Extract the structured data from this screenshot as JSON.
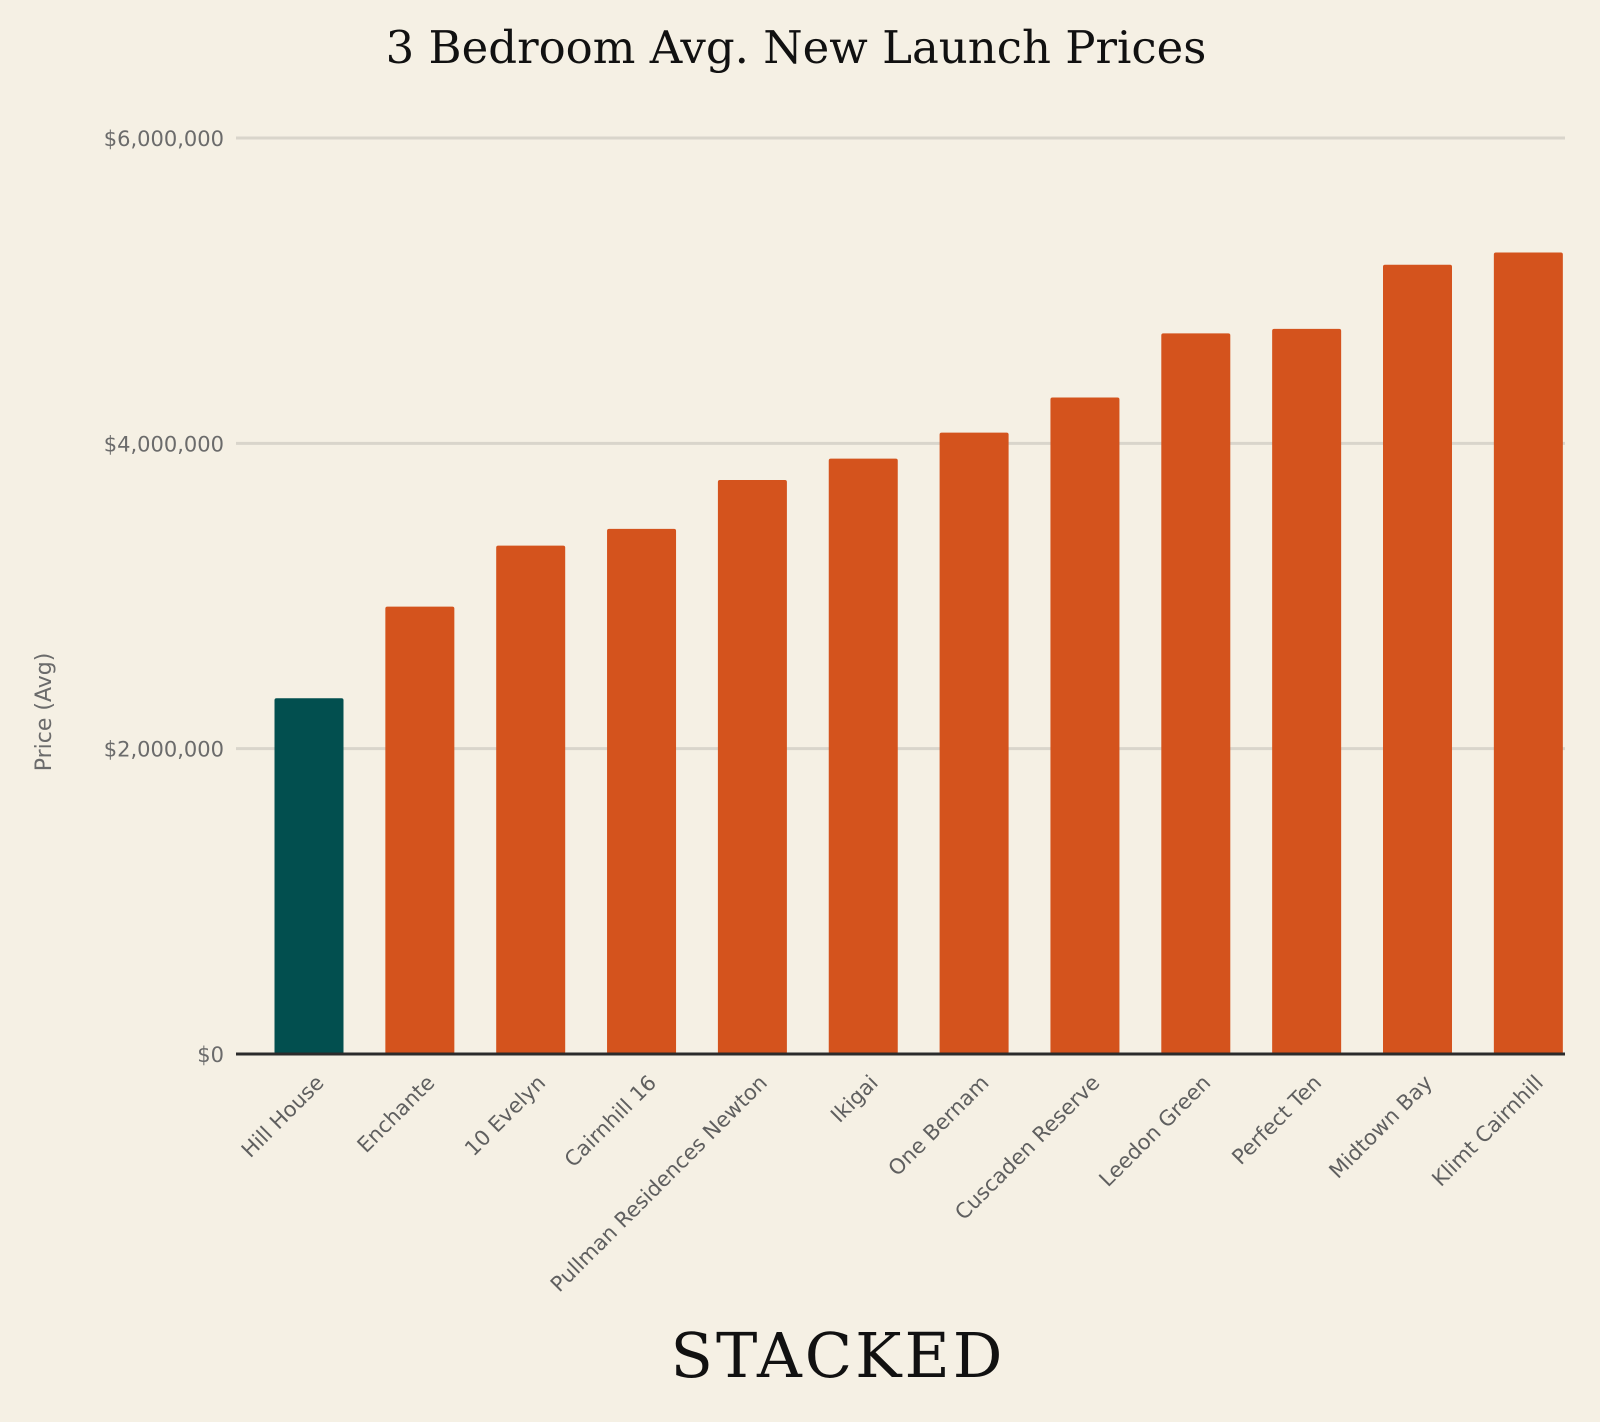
{
  "brand": "STACKED",
  "colors": {
    "background": "#f5f0e4",
    "highlight_bar": "#024f4f",
    "bar": "#d4531d",
    "grid": "#d9d5cb",
    "baseline": "#2b2b2b"
  },
  "chart_data": {
    "type": "bar",
    "title": "3 Bedroom Avg. New Launch Prices",
    "xlabel": "",
    "ylabel": "Price (Avg)",
    "ylim": [
      0,
      6000000
    ],
    "yticks": [
      0,
      2000000,
      4000000,
      6000000
    ],
    "ytick_labels": [
      "$0",
      "$2,000,000",
      "$4,000,000",
      "$6,000,000"
    ],
    "grid": true,
    "categories": [
      "Hill House",
      "Enchante",
      "10 Evelyn",
      "Cairnhill 16",
      "Pullman Residences Newton",
      "Ikigai",
      "One Bernam",
      "Cuscaden Reserve",
      "Leedon Green",
      "Perfect Ten",
      "Midtown Bay",
      "Klimt Cairnhill"
    ],
    "values": [
      2330000,
      2930000,
      3330000,
      3440000,
      3760000,
      3900000,
      4070000,
      4300000,
      4720000,
      4750000,
      5170000,
      5250000
    ],
    "highlighted": [
      "Hill House"
    ]
  }
}
